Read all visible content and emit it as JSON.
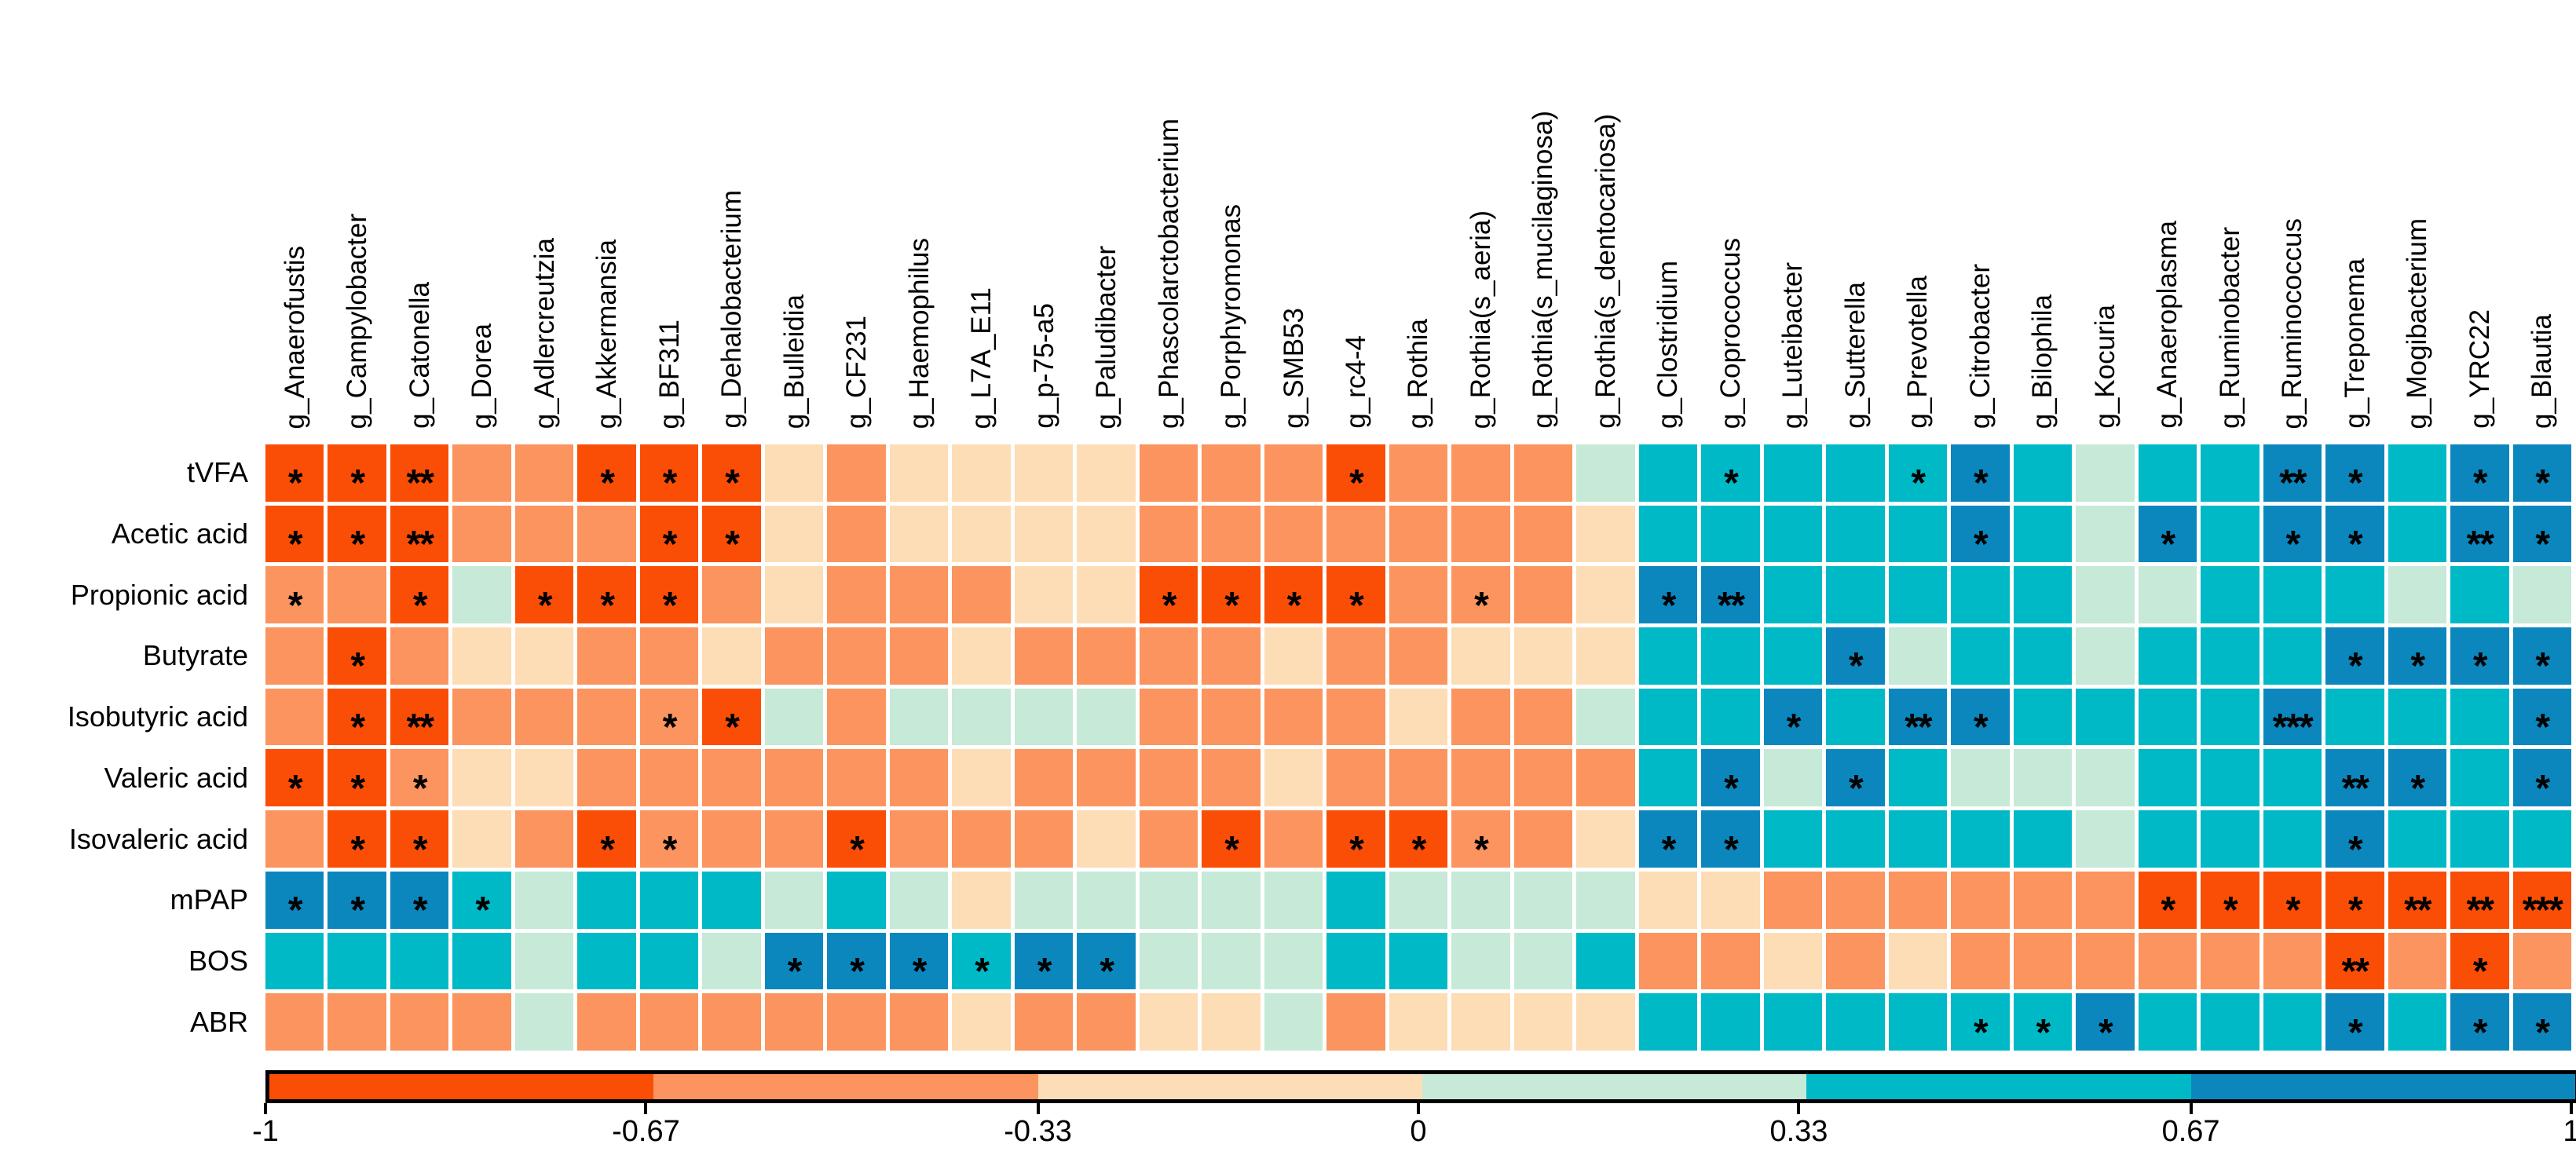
{
  "chart_data": {
    "type": "heatmap",
    "title": "",
    "description": "Correlation heatmap between gut microbiota genera (columns) and volatile fatty acids / clinical indices (rows); asterisks mark significance",
    "rows": [
      "tVFA",
      "Acetic acid",
      "Propionic acid",
      "Butyrate",
      "Isobutyric acid",
      "Valeric acid",
      "Isovaleric acid",
      "mPAP",
      "BOS",
      "ABR"
    ],
    "columns": [
      "g_Anaerofustis",
      "g_Campylobacter",
      "g_Catonella",
      "g_Dorea",
      "g_Adlercreutzia",
      "g_Akkermansia",
      "g_BF311",
      "g_Dehalobacterium",
      "g_Bulleidia",
      "g_CF231",
      "g_Haemophilus",
      "g_L7A_E11",
      "g_p-75-a5",
      "g_Paludibacter",
      "g_Phascolarctobacterium",
      "g_Porphyromonas",
      "g_SMB53",
      "g_rc4-4",
      "g_Rothia",
      "g_Rothia(s_aeria)",
      "g_Rothia(s_mucilaginosa)",
      "g_Rothia(s_dentocariosa)",
      "g_Clostridium",
      "g_Coprococcus",
      "g_Luteibacter",
      "g_Sutterella",
      "g_Prevotella",
      "g_Citrobacter",
      "g_Bilophila",
      "g_Kocuria",
      "g_Anaeroplasma",
      "g_Ruminobacter",
      "g_Ruminococcus",
      "g_Treponema",
      "g_Mogibacterium",
      "g_YRC22",
      "g_Blautia"
    ],
    "cell_code_note": "letter = correlation bin, trailing asterisks = significance stars shown in cell",
    "class_values": {
      "D": -0.84,
      "M": -0.5,
      "C": -0.17,
      "G": 0.17,
      "T": 0.5,
      "B": 0.84
    },
    "class_colors": {
      "D": "#FA4E07",
      "M": "#FB945E",
      "C": "#FDDDB6",
      "G": "#C7E9D7",
      "T": "#00B9C6",
      "B": "#0C87BE"
    },
    "cells": [
      [
        "D*",
        "D*",
        "D**",
        "M",
        "M",
        "D*",
        "D*",
        "D*",
        "C",
        "M",
        "C",
        "C",
        "C",
        "C",
        "M",
        "M",
        "M",
        "D*",
        "M",
        "M",
        "M",
        "G",
        "T",
        "T*",
        "T",
        "T",
        "T*",
        "B*",
        "T",
        "G",
        "T",
        "T",
        "B**",
        "B*",
        "T",
        "B*",
        "B*"
      ],
      [
        "D*",
        "D*",
        "D**",
        "M",
        "M",
        "M",
        "D*",
        "D*",
        "C",
        "M",
        "C",
        "C",
        "C",
        "C",
        "M",
        "M",
        "M",
        "M",
        "M",
        "M",
        "M",
        "C",
        "T",
        "T",
        "T",
        "T",
        "T",
        "B*",
        "T",
        "G",
        "B*",
        "T",
        "B*",
        "B*",
        "T",
        "B**",
        "B*"
      ],
      [
        "M*",
        "M",
        "D*",
        "G",
        "D*",
        "D*",
        "D*",
        "M",
        "C",
        "M",
        "M",
        "M",
        "C",
        "C",
        "D*",
        "D*",
        "D*",
        "D*",
        "M",
        "M*",
        "M",
        "C",
        "B*",
        "B**",
        "T",
        "T",
        "T",
        "T",
        "T",
        "G",
        "G",
        "T",
        "T",
        "T",
        "G",
        "T",
        "G"
      ],
      [
        "M",
        "D*",
        "M",
        "C",
        "C",
        "M",
        "M",
        "C",
        "M",
        "M",
        "M",
        "C",
        "M",
        "M",
        "M",
        "M",
        "C",
        "M",
        "M",
        "C",
        "C",
        "C",
        "T",
        "T",
        "T",
        "B*",
        "G",
        "T",
        "T",
        "G",
        "T",
        "T",
        "T",
        "B*",
        "B*",
        "B*",
        "B*"
      ],
      [
        "M",
        "D*",
        "D**",
        "M",
        "M",
        "M",
        "M*",
        "D*",
        "G",
        "M",
        "G",
        "G",
        "G",
        "G",
        "M",
        "M",
        "M",
        "M",
        "C",
        "M",
        "M",
        "G",
        "T",
        "T",
        "B*",
        "T",
        "B**",
        "B*",
        "T",
        "T",
        "T",
        "T",
        "B***",
        "T",
        "T",
        "T",
        "B*"
      ],
      [
        "D*",
        "D*",
        "M*",
        "C",
        "C",
        "M",
        "M",
        "M",
        "M",
        "M",
        "M",
        "C",
        "M",
        "M",
        "M",
        "M",
        "C",
        "M",
        "M",
        "M",
        "M",
        "M",
        "T",
        "B*",
        "G",
        "B*",
        "T",
        "G",
        "G",
        "G",
        "T",
        "T",
        "T",
        "B**",
        "B*",
        "T",
        "B*"
      ],
      [
        "M",
        "D*",
        "D*",
        "C",
        "M",
        "D*",
        "M*",
        "M",
        "M",
        "D*",
        "M",
        "M",
        "M",
        "C",
        "M",
        "D*",
        "M",
        "D*",
        "D*",
        "M*",
        "M",
        "C",
        "B*",
        "B*",
        "T",
        "T",
        "T",
        "T",
        "T",
        "G",
        "T",
        "T",
        "T",
        "B*",
        "T",
        "T",
        "T"
      ],
      [
        "B*",
        "B*",
        "B*",
        "T*",
        "G",
        "T",
        "T",
        "T",
        "G",
        "T",
        "G",
        "C",
        "G",
        "G",
        "G",
        "G",
        "G",
        "T",
        "G",
        "G",
        "G",
        "G",
        "C",
        "C",
        "M",
        "M",
        "M",
        "M",
        "M",
        "M",
        "D*",
        "D*",
        "D*",
        "D*",
        "D**",
        "D**",
        "D***"
      ],
      [
        "T",
        "T",
        "T",
        "T",
        "G",
        "T",
        "T",
        "G",
        "B*",
        "B*",
        "B*",
        "T*",
        "B*",
        "B*",
        "G",
        "G",
        "G",
        "T",
        "T",
        "G",
        "G",
        "T",
        "M",
        "M",
        "C",
        "M",
        "C",
        "M",
        "M",
        "M",
        "M",
        "M",
        "M",
        "D**",
        "M",
        "D*",
        "M"
      ],
      [
        "M",
        "M",
        "M",
        "M",
        "G",
        "M",
        "M",
        "M",
        "M",
        "M",
        "M",
        "C",
        "M",
        "M",
        "C",
        "C",
        "G",
        "M",
        "C",
        "C",
        "C",
        "C",
        "T",
        "T",
        "T",
        "T",
        "T",
        "T*",
        "T*",
        "B*",
        "T",
        "T",
        "T",
        "B*",
        "T",
        "B*",
        "B*"
      ]
    ],
    "colorbar": {
      "min": -1,
      "max": 1,
      "tick_values": [
        -1,
        -0.67,
        -0.33,
        0,
        0.33,
        0.67,
        1
      ],
      "tick_labels": [
        "-1",
        "-0.67",
        "-0.33",
        "0",
        "0.33",
        "0.67",
        "1"
      ],
      "segment_colors": [
        "#FA4E07",
        "#FB945E",
        "#FDDDB6",
        "#C7E9D7",
        "#00B9C6",
        "#0C87BE"
      ],
      "legend_position": "bottom",
      "grid": false
    }
  }
}
